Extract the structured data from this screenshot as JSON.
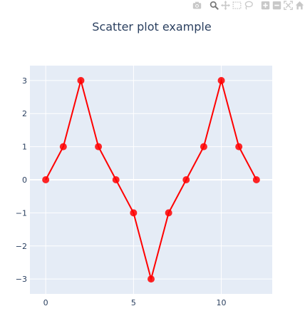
{
  "modebar": {
    "buttons": [
      {
        "icon": "camera-icon",
        "tip": "Download plot as a png",
        "active": false
      },
      {
        "icon": "zoom-icon",
        "tip": "Zoom",
        "active": true
      },
      {
        "icon": "pan-icon",
        "tip": "Pan",
        "active": false
      },
      {
        "icon": "box-select-icon",
        "tip": "Box Select",
        "active": false
      },
      {
        "icon": "lasso-select-icon",
        "tip": "Lasso Select",
        "active": false
      },
      {
        "icon": "zoom-in-icon",
        "tip": "Zoom in",
        "active": false
      },
      {
        "icon": "zoom-out-icon",
        "tip": "Zoom out",
        "active": false
      },
      {
        "icon": "autoscale-icon",
        "tip": "Autoscale",
        "active": false
      },
      {
        "icon": "home-icon",
        "tip": "Reset axes",
        "active": false
      }
    ]
  },
  "colors": {
    "plot_bg": "#e5ecf6",
    "grid": "#ffffff",
    "text": "#2a3f5f",
    "series": "#ff0000"
  },
  "chart_data": {
    "type": "scatter",
    "mode": "lines+markers",
    "title": "Scatter plot example",
    "xlabel": "",
    "ylabel": "",
    "xlim": [
      -0.9,
      12.9
    ],
    "ylim": [
      -3.45,
      3.45
    ],
    "xticks": [
      0,
      5,
      10
    ],
    "yticks": [
      -3,
      -2,
      -1,
      0,
      1,
      2,
      3
    ],
    "grid": true,
    "legend": "none",
    "series": [
      {
        "x": [
          0,
          1,
          2,
          3,
          4,
          5,
          6,
          7,
          8,
          9,
          10,
          11,
          12
        ],
        "y": [
          0,
          1,
          3,
          1,
          0,
          -1,
          -3,
          -1,
          0,
          1,
          3,
          1,
          0
        ],
        "color": "#ff0000"
      }
    ]
  }
}
